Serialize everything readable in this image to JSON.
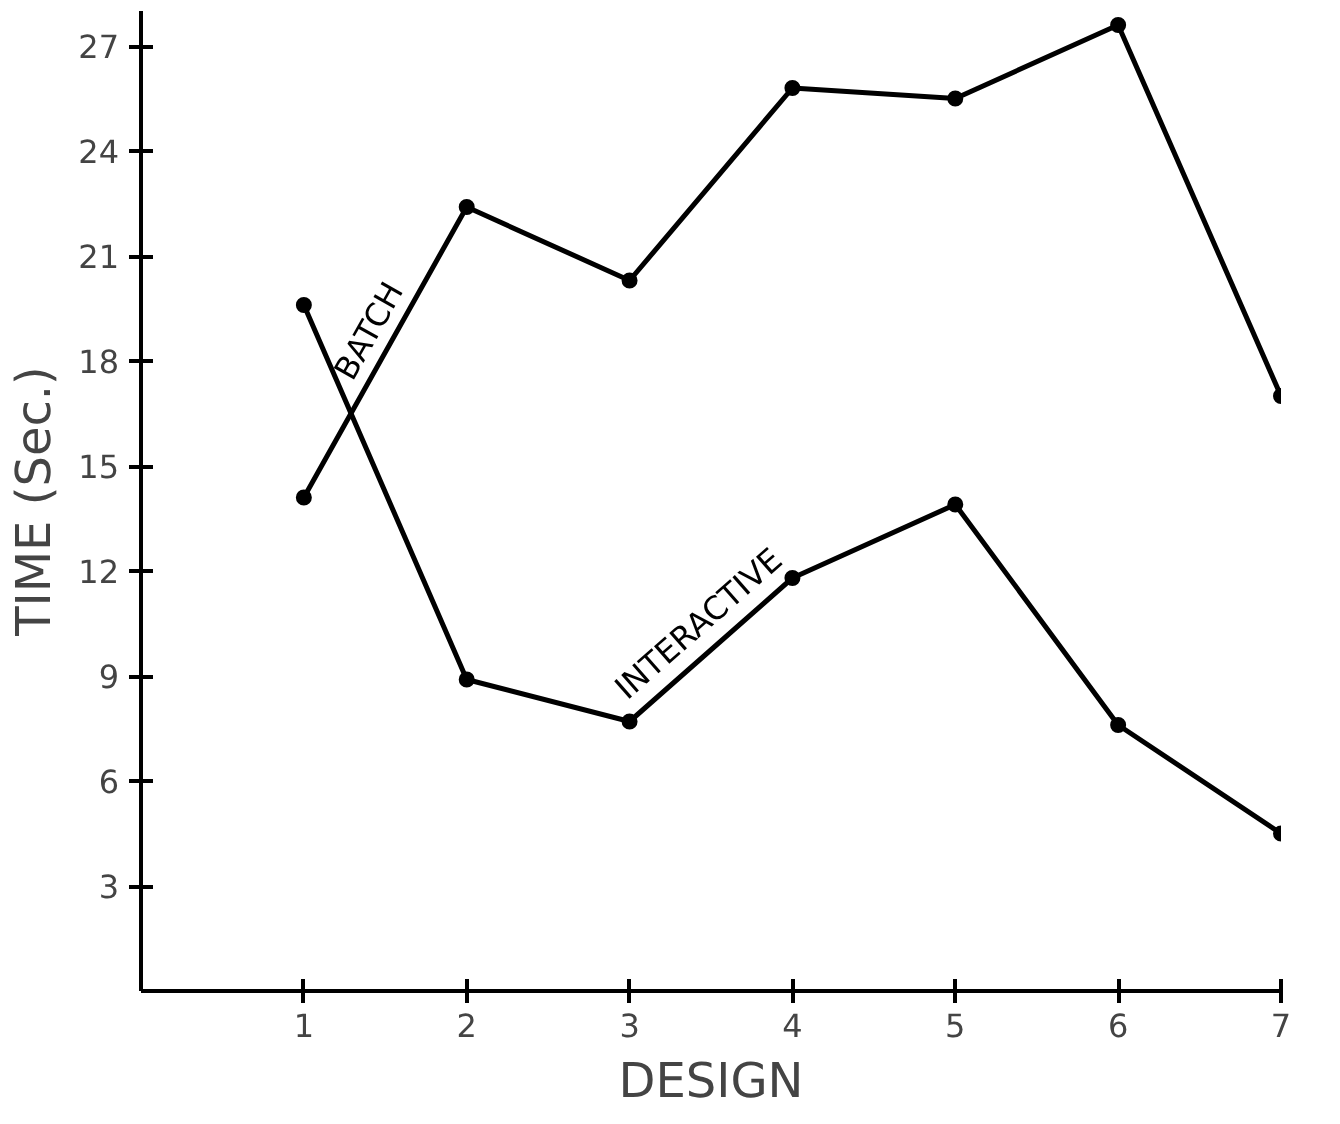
{
  "chart_data": {
    "type": "line",
    "xlabel": "DESIGN",
    "ylabel": "TIME (Sec.)",
    "x": [
      1,
      2,
      3,
      4,
      5,
      6,
      7
    ],
    "series": [
      {
        "name": "BATCH",
        "color": "#000000",
        "values": [
          14.1,
          22.4,
          20.3,
          25.8,
          25.5,
          27.6,
          17.0
        ]
      },
      {
        "name": "INTERACTIVE",
        "color": "#000000",
        "values": [
          19.6,
          8.9,
          7.7,
          11.8,
          13.9,
          7.6,
          4.5
        ]
      }
    ],
    "xlim": [
      0,
      7
    ],
    "ylim": [
      0,
      28
    ],
    "xticks": [
      1,
      2,
      3,
      4,
      5,
      6,
      7
    ],
    "yticks": [
      3,
      6,
      9,
      12,
      15,
      18,
      21,
      24,
      27
    ],
    "grid": false,
    "marker": "circle",
    "line_style": "solid"
  }
}
